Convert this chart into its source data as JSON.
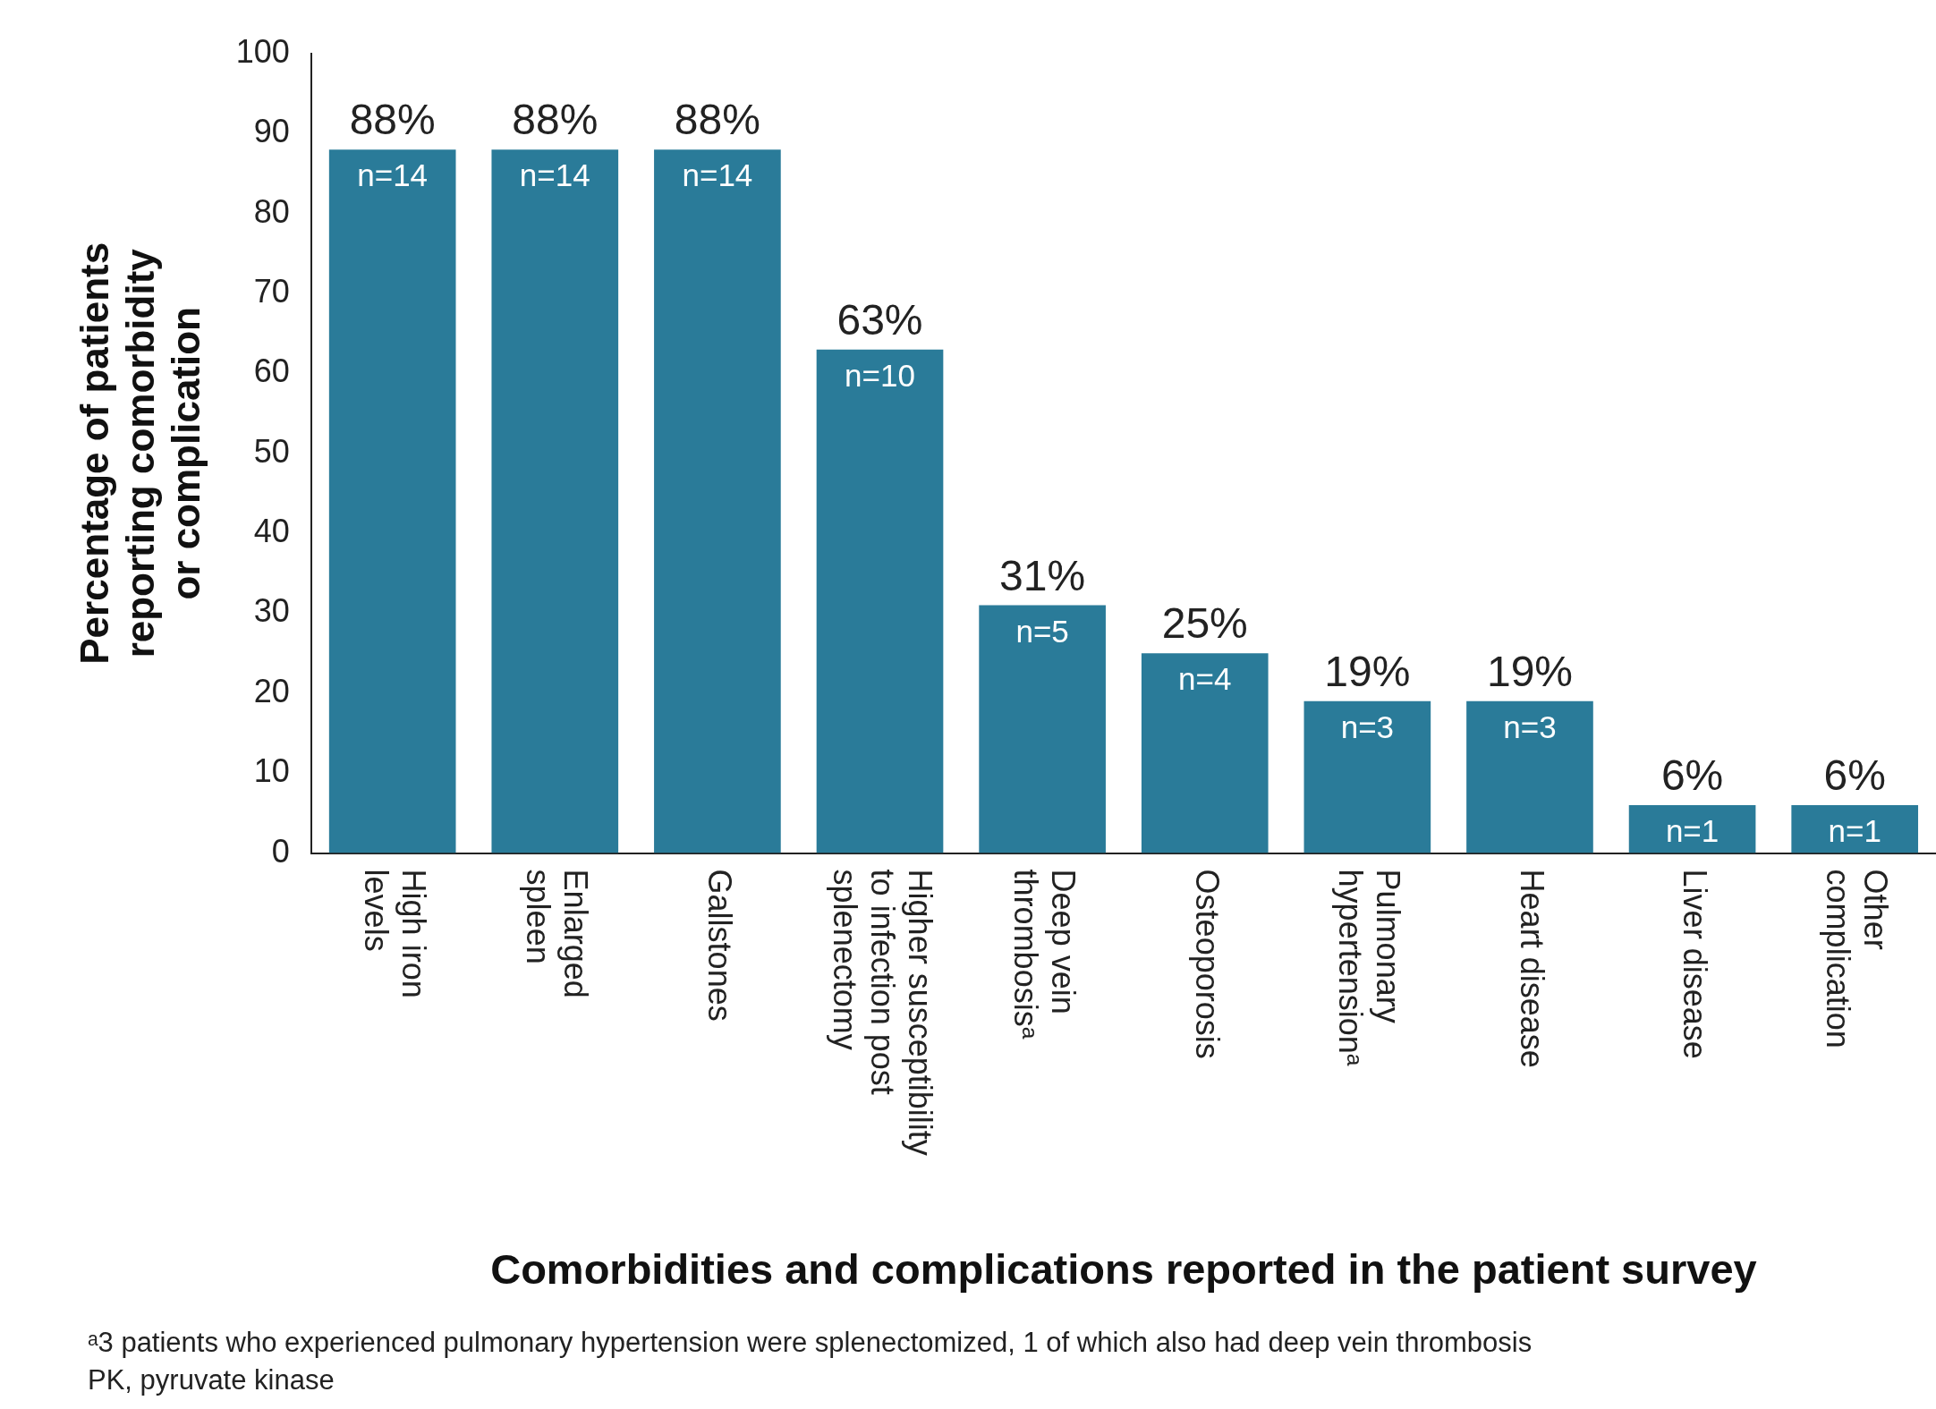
{
  "chart_data": {
    "type": "bar",
    "xlabel": "Comorbidities and complications reported in the patient survey",
    "ylabel": "Percentage of patients reporting comorbidity or complication",
    "categories": [
      "High iron levels",
      "Enlarged spleen",
      "Gallstones",
      "Higher susceptibility to infection post splenectomy",
      "Deep vein thrombosisᵃ",
      "Osteoporosis",
      "Pulmonary hypertensionᵃ",
      "Heart disease",
      "Liver disease",
      "Other complication"
    ],
    "values": [
      88,
      88,
      88,
      63,
      31,
      25,
      19,
      19,
      6,
      6
    ],
    "value_labels": [
      "88%",
      "88%",
      "88%",
      "63%",
      "31%",
      "25%",
      "19%",
      "19%",
      "6%",
      "6%"
    ],
    "color": "#2a7b99",
    "ylim": [
      0,
      100
    ],
    "yticks": [
      0,
      10,
      20,
      30,
      40,
      50,
      60,
      70,
      80,
      90,
      100
    ],
    "grid": false,
    "legend": false,
    "annotations": [
      {
        "text": "n=14",
        "x": "High iron levels",
        "y": 88
      },
      {
        "text": "n=14",
        "x": "Enlarged spleen",
        "y": 88
      },
      {
        "text": "n=14",
        "x": "Gallstones",
        "y": 88
      },
      {
        "text": "n=10",
        "x": "Higher susceptibility to infection post splenectomy",
        "y": 63
      },
      {
        "text": "n=5",
        "x": "Deep vein thrombosisᵃ",
        "y": 31
      },
      {
        "text": "n=4",
        "x": "Osteoporosis",
        "y": 25
      },
      {
        "text": "n=3",
        "x": "Pulmonary hypertensionᵃ",
        "y": 19
      },
      {
        "text": "n=3",
        "x": "Heart disease",
        "y": 19
      },
      {
        "text": "n=1",
        "x": "Liver disease",
        "y": 6
      },
      {
        "text": "n=1",
        "x": "Other complication",
        "y": 6
      },
      "ᵃ3 patients who experienced pulmonary hypertension were splenectomized, 1 of which also had deep vein thrombosis",
      "PK, pyruvate kinase"
    ]
  }
}
